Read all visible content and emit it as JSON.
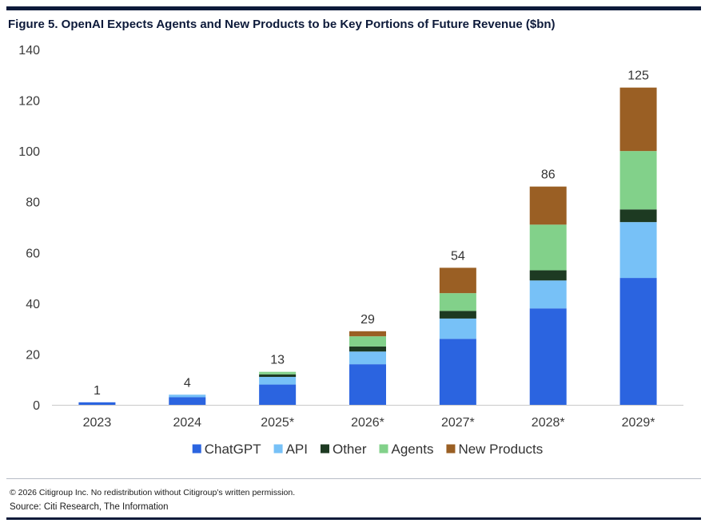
{
  "figure": {
    "title": "Figure 5. OpenAI Expects Agents and New Products to be Key Portions of Future Revenue ($bn)",
    "copyright": "© 2026 Citigroup Inc. No redistribution without Citigroup’s written permission.",
    "source": "Source: Citi Research, The Information"
  },
  "chart_data": {
    "type": "bar",
    "stacked": true,
    "title": "OpenAI Expects Agents and New Products to be Key Portions of Future Revenue ($bn)",
    "xlabel": "",
    "ylabel": "",
    "ylim": [
      0,
      140
    ],
    "yticks": [
      0,
      20,
      40,
      60,
      80,
      100,
      120,
      140
    ],
    "categories": [
      "2023",
      "2024",
      "2025*",
      "2026*",
      "2027*",
      "2028*",
      "2029*"
    ],
    "series": [
      {
        "name": "ChatGPT",
        "color": "#2b64e0",
        "values": [
          1,
          3,
          8,
          16,
          26,
          38,
          50
        ]
      },
      {
        "name": "API",
        "color": "#77c1f7",
        "values": [
          0,
          1,
          3,
          5,
          8,
          11,
          22
        ]
      },
      {
        "name": "Other",
        "color": "#1d3a22",
        "values": [
          0,
          0,
          1,
          2,
          3,
          4,
          5
        ]
      },
      {
        "name": "Agents",
        "color": "#82d18a",
        "values": [
          0,
          0,
          1,
          4,
          7,
          18,
          23
        ]
      },
      {
        "name": "New Products",
        "color": "#9a5f24",
        "values": [
          0,
          0,
          0,
          2,
          10,
          15,
          25
        ]
      }
    ],
    "totals": [
      1,
      4,
      13,
      29,
      54,
      86,
      125
    ],
    "legend_position": "bottom",
    "grid": false
  }
}
